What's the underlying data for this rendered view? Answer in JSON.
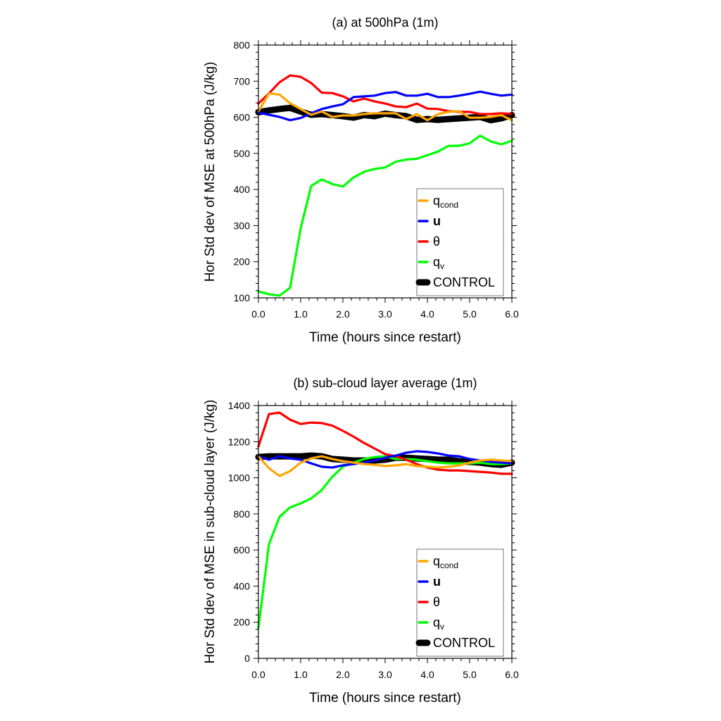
{
  "chart_data": [
    {
      "type": "line",
      "title": "(a) at 500hPa  (1m)",
      "xlabel": "Time (hours since restart)",
      "ylabel": "Hor Std dev of MSE at 500hPa (J/kg)",
      "xlim": [
        0,
        6
      ],
      "ylim": [
        100,
        800
      ],
      "xticks": [
        0,
        1,
        2,
        3,
        4,
        5,
        6
      ],
      "xtick_labels": [
        "0.0",
        "1.0",
        "2.0",
        "3.0",
        "4.0",
        "5.0",
        "6.0"
      ],
      "yticks": [
        100,
        200,
        300,
        400,
        500,
        600,
        700,
        800
      ],
      "ytick_labels": [
        "100",
        "200",
        "300",
        "400",
        "500",
        "600",
        "700",
        "800"
      ],
      "grid": false,
      "legend_position": "bottom-right",
      "x": [
        0,
        0.25,
        0.5,
        0.75,
        1.0,
        1.25,
        1.5,
        1.75,
        2.0,
        2.25,
        2.5,
        2.75,
        3.0,
        3.25,
        3.5,
        3.75,
        4.0,
        4.25,
        4.5,
        4.75,
        5.0,
        5.25,
        5.5,
        5.75,
        6.0
      ],
      "series": [
        {
          "name": "CONTROL",
          "key": "control",
          "color": "#000000",
          "values": [
            614,
            619,
            623,
            626,
            616,
            607,
            609,
            606,
            603,
            599,
            606,
            603,
            610,
            606,
            603,
            593,
            595,
            593,
            595,
            597,
            599,
            601,
            592,
            597,
            606
          ]
        },
        {
          "name": "q_cond",
          "key": "qcond",
          "color": "#FFA500",
          "values": [
            616,
            666,
            663,
            639,
            623,
            607,
            616,
            601,
            605,
            605,
            609,
            611,
            611,
            611,
            595,
            609,
            592,
            609,
            615,
            617,
            599,
            599,
            601,
            606,
            592
          ]
        },
        {
          "name": "u",
          "key": "u",
          "color": "#0000FF",
          "values": [
            613,
            607,
            601,
            592,
            598,
            611,
            623,
            630,
            636,
            656,
            658,
            660,
            667,
            670,
            660,
            660,
            665,
            656,
            656,
            660,
            665,
            671,
            665,
            660,
            663
          ]
        },
        {
          "name": "θ",
          "key": "theta",
          "color": "#FF0000",
          "values": [
            638,
            666,
            697,
            716,
            712,
            695,
            668,
            667,
            658,
            644,
            652,
            644,
            638,
            630,
            628,
            638,
            624,
            623,
            617,
            615,
            615,
            609,
            609,
            611,
            609
          ]
        },
        {
          "name": "q_v",
          "key": "qv",
          "color": "#00FF00",
          "values": [
            118,
            110,
            106,
            128,
            292,
            410,
            428,
            415,
            408,
            433,
            449,
            457,
            461,
            477,
            483,
            485,
            495,
            505,
            521,
            521,
            528,
            549,
            533,
            525,
            535
          ]
        }
      ]
    },
    {
      "type": "line",
      "title": "(b) sub-cloud layer average  (1m)",
      "xlabel": "Time (hours since restart)",
      "ylabel": "Hor Std dev of MSE in sub-cloud layer (J/kg)",
      "xlim": [
        0,
        6
      ],
      "ylim": [
        0,
        1400
      ],
      "xticks": [
        0,
        1,
        2,
        3,
        4,
        5,
        6
      ],
      "xtick_labels": [
        "0.0",
        "1.0",
        "2.0",
        "3.0",
        "4.0",
        "5.0",
        "6.0"
      ],
      "yticks": [
        0,
        200,
        400,
        600,
        800,
        1000,
        1200,
        1400
      ],
      "ytick_labels": [
        "0",
        "200",
        "400",
        "600",
        "800",
        "1000",
        "1200",
        "1400"
      ],
      "grid": false,
      "legend_position": "bottom-right",
      "x": [
        0,
        0.25,
        0.5,
        0.75,
        1.0,
        1.25,
        1.5,
        1.75,
        2.0,
        2.25,
        2.5,
        2.75,
        3.0,
        3.25,
        3.5,
        3.75,
        4.0,
        4.25,
        4.5,
        4.75,
        5.0,
        5.25,
        5.5,
        5.75,
        6.0
      ],
      "series": [
        {
          "name": "CONTROL",
          "key": "control",
          "color": "#000000",
          "values": [
            1115,
            1119,
            1119,
            1119,
            1119,
            1123,
            1119,
            1104,
            1100,
            1096,
            1096,
            1096,
            1100,
            1111,
            1111,
            1107,
            1104,
            1100,
            1100,
            1092,
            1088,
            1084,
            1076,
            1072,
            1084
          ]
        },
        {
          "name": "q_cond",
          "key": "qcond",
          "color": "#FFA500",
          "values": [
            1119,
            1053,
            1010,
            1037,
            1084,
            1108,
            1119,
            1104,
            1092,
            1084,
            1076,
            1072,
            1065,
            1069,
            1076,
            1065,
            1061,
            1057,
            1061,
            1069,
            1084,
            1096,
            1100,
            1096,
            1092
          ]
        },
        {
          "name": "u",
          "key": "u",
          "color": "#0000FF",
          "values": [
            1119,
            1100,
            1119,
            1107,
            1100,
            1080,
            1061,
            1057,
            1069,
            1076,
            1084,
            1096,
            1111,
            1123,
            1139,
            1147,
            1143,
            1135,
            1123,
            1119,
            1104,
            1096,
            1088,
            1084,
            1080
          ]
        },
        {
          "name": "θ",
          "key": "theta",
          "color": "#FF0000",
          "values": [
            1174,
            1353,
            1361,
            1322,
            1298,
            1306,
            1303,
            1289,
            1260,
            1228,
            1193,
            1162,
            1131,
            1119,
            1100,
            1076,
            1057,
            1045,
            1041,
            1041,
            1037,
            1033,
            1029,
            1022,
            1022
          ]
        },
        {
          "name": "q_v",
          "key": "qv",
          "color": "#00FF00",
          "values": [
            168,
            632,
            784,
            836,
            858,
            886,
            932,
            1006,
            1061,
            1084,
            1104,
            1115,
            1119,
            1104,
            1104,
            1100,
            1092,
            1084,
            1080,
            1080,
            1080,
            1084,
            1076,
            1076,
            1080
          ]
        }
      ]
    }
  ],
  "legend": {
    "qcond_main": "q",
    "qcond_sub": "cond",
    "u": "u",
    "theta": "θ",
    "qv_main": "q",
    "qv_sub": "v",
    "control": "CONTROL"
  }
}
